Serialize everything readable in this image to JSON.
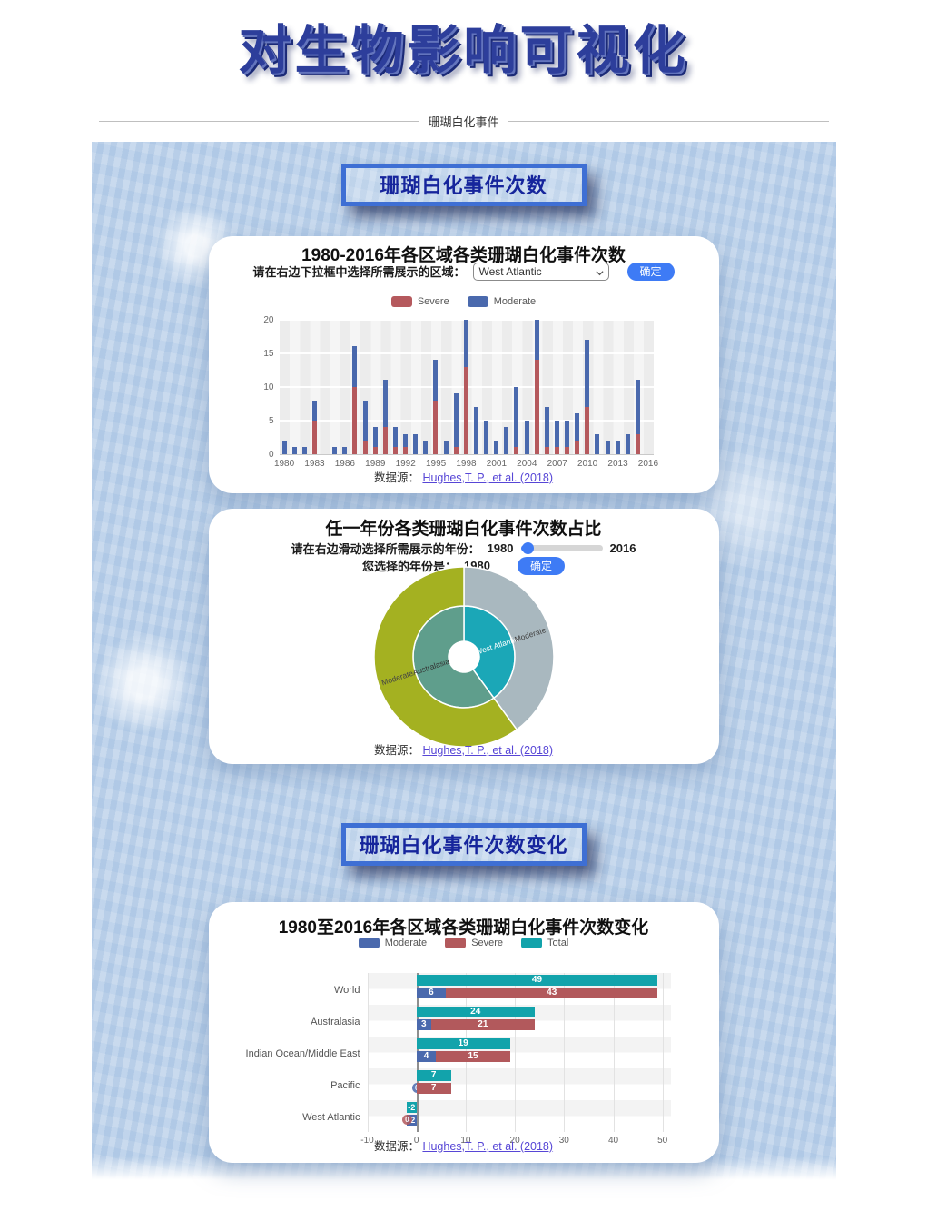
{
  "page": {
    "title": "对生物影响可视化",
    "divider_label": "珊瑚白化事件"
  },
  "section1": {
    "header": "珊瑚白化事件次数"
  },
  "section2": {
    "header": "珊瑚白化事件次数变化"
  },
  "common": {
    "confirm_label": "确定",
    "datasource_label": "数据源：",
    "datasource_link": "Hughes,T. P., et al. (2018)"
  },
  "card1": {
    "title": "1980-2016年各区域各类珊瑚白化事件次数",
    "control_label": "请在右边下拉框中选择所需展示的区域：",
    "select_value": "West Atlantic",
    "legend": [
      {
        "label": "Severe",
        "color": "#b5595d"
      },
      {
        "label": "Moderate",
        "color": "#4a69ad"
      }
    ]
  },
  "card2": {
    "title": "任一年份各类珊瑚白化事件次数占比",
    "slider_label": "请在右边滑动选择所需展示的年份：",
    "slider_min": "1980",
    "slider_max": "2016",
    "year_label": "您选择的年份是：",
    "year_value": "1980"
  },
  "card3": {
    "title": "1980至2016年各区域各类珊瑚白化事件次数变化",
    "legend": [
      {
        "label": "Moderate",
        "color": "#4a69ad"
      },
      {
        "label": "Severe",
        "color": "#b2595c"
      },
      {
        "label": "Total",
        "color": "#12a3ab"
      }
    ]
  },
  "chart_data": [
    {
      "type": "bar",
      "stacked": true,
      "title": "1980-2016年各区域各类珊瑚白化事件次数 (West Atlantic)",
      "x_start": 1980,
      "x_end": 2016,
      "xticks": [
        1980,
        1983,
        1986,
        1989,
        1992,
        1995,
        1998,
        2001,
        2004,
        2007,
        2010,
        2013,
        2016
      ],
      "ylim": [
        0,
        20
      ],
      "yticks": [
        0,
        5,
        10,
        15,
        20
      ],
      "series": [
        {
          "name": "Severe",
          "color": "#b5595d",
          "values": [
            0,
            0,
            0,
            5,
            0,
            0,
            0,
            10,
            2,
            1,
            4,
            1,
            1,
            0,
            0,
            8,
            0,
            1,
            13,
            0,
            0,
            0,
            0,
            1,
            0,
            14,
            1,
            1,
            1,
            2,
            7,
            0,
            0,
            0,
            0,
            3,
            0
          ]
        },
        {
          "name": "Moderate",
          "color": "#4a69ad",
          "values": [
            2,
            1,
            1,
            3,
            0,
            1,
            1,
            6,
            6,
            3,
            7,
            3,
            2,
            3,
            2,
            6,
            2,
            8,
            7,
            7,
            5,
            2,
            4,
            9,
            5,
            6,
            6,
            4,
            4,
            4,
            10,
            3,
            2,
            2,
            3,
            8,
            0
          ]
        }
      ]
    },
    {
      "type": "pie",
      "subtype": "sunburst",
      "title": "任一年份各类珊瑚白化事件次数占比 (1980)",
      "year": 1980,
      "inner": [
        {
          "label": "West Atlantic",
          "value": 2,
          "color": "#1ba7b7",
          "text_color": "#ffffff"
        },
        {
          "label": "Australasia",
          "value": 3,
          "color": "#5f9e8c",
          "text_color": "#333333"
        }
      ],
      "outer": [
        {
          "label": "Moderate",
          "parent": "West Atlantic",
          "value": 2,
          "color": "#a9b8bf",
          "text_color": "#444444"
        },
        {
          "label": "Moderate",
          "parent": "Australasia",
          "value": 3,
          "color": "#a4b121",
          "text_color": "#444444"
        }
      ]
    },
    {
      "type": "bar",
      "orientation": "horizontal",
      "title": "1980至2016年各区域各类珊瑚白化事件次数变化",
      "categories": [
        "World",
        "Australasia",
        "Indian Ocean/Middle East",
        "Pacific",
        "West Atlantic"
      ],
      "series": [
        {
          "name": "Total",
          "color": "#12a3ab",
          "values": [
            49,
            24,
            19,
            7,
            -2
          ]
        },
        {
          "name": "Moderate",
          "color": "#4a69ad",
          "values": [
            6,
            3,
            4,
            0,
            -2
          ]
        },
        {
          "name": "Severe",
          "color": "#b2595c",
          "values": [
            43,
            21,
            15,
            7,
            0
          ]
        }
      ],
      "xlim": [
        -10,
        50
      ],
      "xticks": [
        -10,
        0,
        10,
        20,
        30,
        40,
        50
      ]
    }
  ]
}
